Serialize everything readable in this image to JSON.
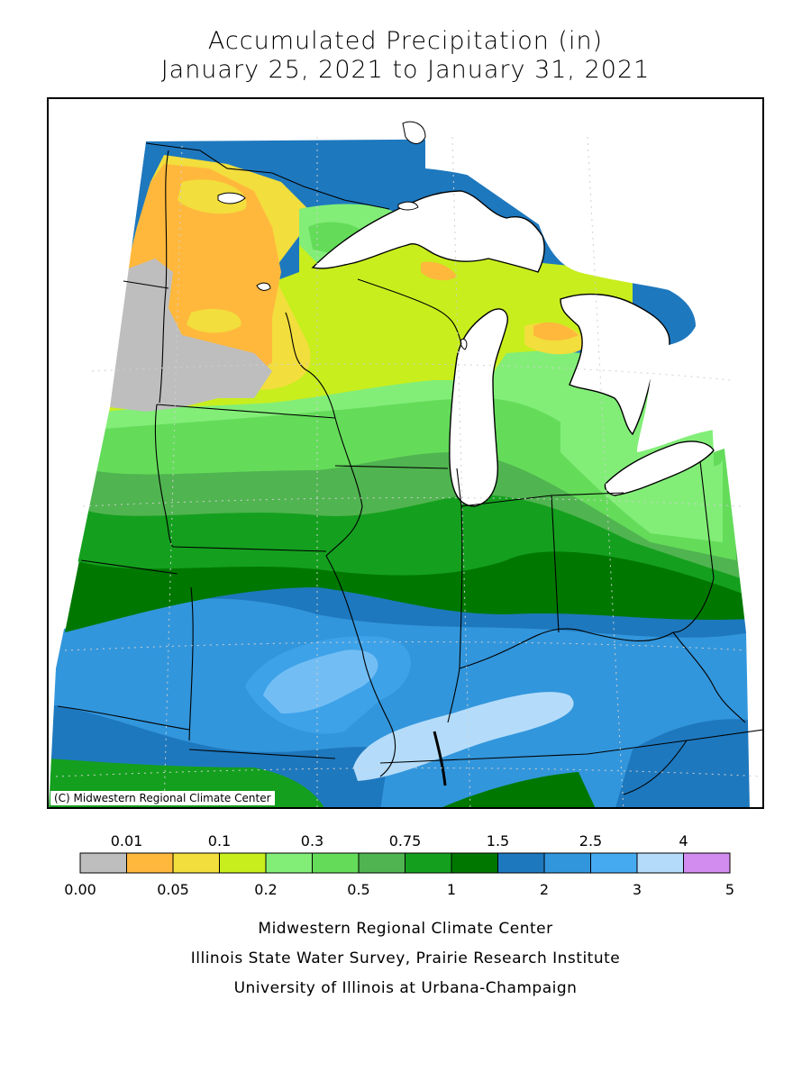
{
  "title": {
    "line1": "Accumulated Precipitation (in)",
    "line2": "January 25, 2021 to January 31, 2021"
  },
  "map": {
    "copyright": "(C) Midwestern Regional Climate Center"
  },
  "legend": {
    "bins": [
      {
        "color": "#bebebe"
      },
      {
        "color": "#ffb83c"
      },
      {
        "color": "#f2de3c"
      },
      {
        "color": "#c8ee1e"
      },
      {
        "color": "#82ee78"
      },
      {
        "color": "#64dc5a"
      },
      {
        "color": "#50b450"
      },
      {
        "color": "#14a01e"
      },
      {
        "color": "#007800"
      },
      {
        "color": "#1e78be"
      },
      {
        "color": "#3296dc"
      },
      {
        "color": "#46aaf0"
      },
      {
        "color": "#b4dcfa"
      },
      {
        "color": "#d28cf0"
      }
    ],
    "upper_labels": [
      "0.01",
      "0.1",
      "0.3",
      "0.75",
      "1.5",
      "2.5",
      "4"
    ],
    "lower_labels": [
      "0.00",
      "0.05",
      "0.2",
      "0.5",
      "1",
      "2",
      "3",
      "5"
    ]
  },
  "credits": {
    "line1": "Midwestern Regional Climate Center",
    "line2": "Illinois State Water Survey, Prairie Research Institute",
    "line3": "University of Illinois at Urbana-Champaign"
  }
}
